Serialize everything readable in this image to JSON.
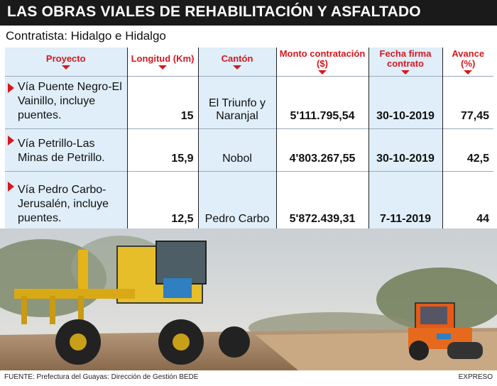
{
  "title": "LAS OBRAS VIALES DE REHABILITACIÓN Y ASFALTADO",
  "contractor": "Contratista: Hidalgo e Hidalgo",
  "headers": [
    "Proyecto",
    "Longitud (Km)",
    "Cantón",
    "Monto contratación ($)",
    "Fecha firma contrato",
    "Avance (%)"
  ],
  "rows": [
    {
      "proyecto": "Vía Puente Negro-El Vainillo, incluye puentes.",
      "longitud": "15",
      "canton": "El Triunfo y Naranjal",
      "monto": "5'111.795,54",
      "fecha": "30-10-2019",
      "avance": "77,45"
    },
    {
      "proyecto": "Vía Petrillo-Las Minas de Petrillo.",
      "longitud": "15,9",
      "canton": "Nobol",
      "monto": "4'803.267,55",
      "fecha": "30-10-2019",
      "avance": "42,5"
    },
    {
      "proyecto": "Vía Pedro Carbo-Jerusalén, incluye puentes.",
      "longitud": "12,5",
      "canton": "Pedro Carbo",
      "monto": "5'872.439,31",
      "fecha": "7-11-2019",
      "avance": "44"
    }
  ],
  "footer": {
    "source": "FUENTE: Prefectura del Guayas: Dirección de Gestión BEDE",
    "brand": "EXPRESO"
  },
  "colors": {
    "accent": "#d6181e",
    "header_bar": "#1a1a1a",
    "shade": "#dfeef8"
  }
}
